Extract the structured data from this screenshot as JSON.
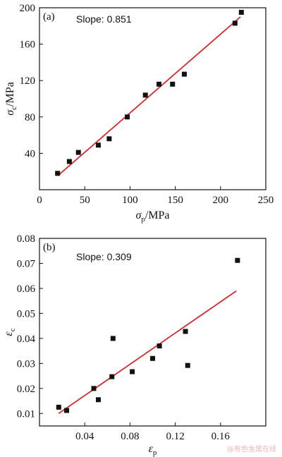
{
  "chart_data": [
    {
      "type": "scatter",
      "panel_label": "(a)",
      "annotation": "Slope: 0.851",
      "xlabel": {
        "symbol": "σ",
        "sub": "p",
        "unit": "/MPa"
      },
      "ylabel": {
        "symbol": "σ",
        "sub": "c",
        "unit": "/MPa"
      },
      "xlim": [
        0,
        250
      ],
      "ylim": [
        0,
        200
      ],
      "xticks": [
        0,
        50,
        100,
        150,
        200,
        250
      ],
      "yticks": [
        40,
        80,
        120,
        160,
        200
      ],
      "xtick_labels": [
        "0",
        "50",
        "100",
        "150",
        "200",
        "250"
      ],
      "ytick_labels": [
        "40",
        "80",
        "120",
        "160",
        "200"
      ],
      "points": [
        [
          20,
          18
        ],
        [
          33,
          31
        ],
        [
          43,
          41
        ],
        [
          65,
          49
        ],
        [
          77,
          56
        ],
        [
          97,
          80
        ],
        [
          117,
          104
        ],
        [
          132,
          116
        ],
        [
          147,
          116
        ],
        [
          160,
          127
        ],
        [
          216,
          183
        ],
        [
          223,
          195
        ]
      ],
      "fit_line": {
        "x": [
          21,
          222
        ],
        "y": [
          16,
          190
        ],
        "color": "#d42a2a"
      },
      "marker_color": "#111111"
    },
    {
      "type": "scatter",
      "panel_label": "(b)",
      "annotation": "Slope: 0.309",
      "xlabel": {
        "symbol": "ε",
        "sub": "p",
        "unit": ""
      },
      "ylabel": {
        "symbol": "ε",
        "sub": "c",
        "unit": ""
      },
      "xlim": [
        0,
        0.2
      ],
      "ylim": [
        0.005,
        0.08
      ],
      "xticks": [
        0.04,
        0.08,
        0.12,
        0.16
      ],
      "yticks": [
        0.01,
        0.02,
        0.03,
        0.04,
        0.05,
        0.06,
        0.07,
        0.08
      ],
      "xtick_labels": [
        "0.04",
        "0.08",
        "0.12",
        "0.16"
      ],
      "ytick_labels": [
        "0.01",
        "0.02",
        "0.03",
        "0.04",
        "0.05",
        "0.06",
        "0.07",
        "0.08"
      ],
      "points": [
        [
          0.017,
          0.0125
        ],
        [
          0.024,
          0.0112
        ],
        [
          0.048,
          0.02
        ],
        [
          0.052,
          0.0155
        ],
        [
          0.064,
          0.0247
        ],
        [
          0.065,
          0.04
        ],
        [
          0.082,
          0.0267
        ],
        [
          0.1,
          0.032
        ],
        [
          0.106,
          0.037
        ],
        [
          0.129,
          0.0428
        ],
        [
          0.131,
          0.0292
        ],
        [
          0.175,
          0.0712
        ]
      ],
      "fit_line": {
        "x": [
          0.017,
          0.174
        ],
        "y": [
          0.01,
          0.059
        ],
        "color": "#d42a2a"
      },
      "marker_color": "#111111"
    }
  ],
  "watermark": "@有色金属在线"
}
